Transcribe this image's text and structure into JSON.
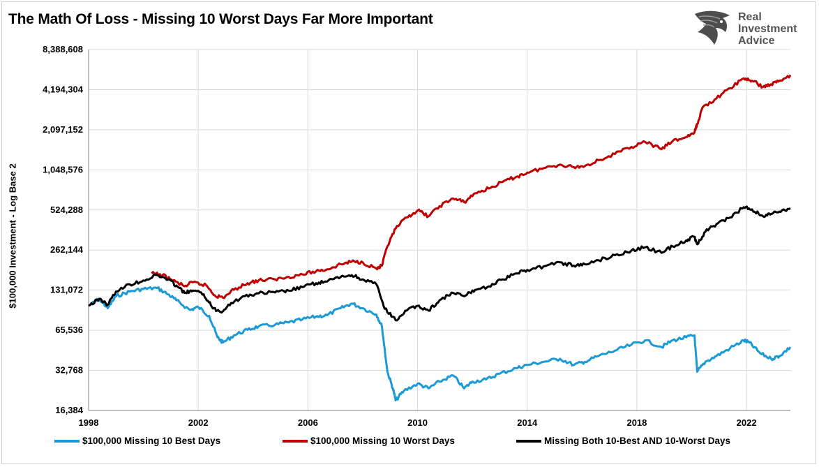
{
  "title": "The Math Of Loss - Missing 10 Worst Days Far More Important",
  "logo": {
    "lines": [
      "Real",
      "Investment",
      "Advice"
    ],
    "icon": "eagle-head-icon",
    "color": "#555555"
  },
  "chart_data": {
    "type": "line",
    "ylabel": "$100,000 Investment - Log Base 2",
    "yscale": "log2",
    "ylim": [
      16384,
      8388608
    ],
    "yticks": [
      16384,
      32768,
      65536,
      131072,
      262144,
      524288,
      1048576,
      2097152,
      4194304,
      8388608
    ],
    "ytick_labels": [
      "16,384",
      "32,768",
      "65,536",
      "131,072",
      "262,144",
      "524,288",
      "1,048,576",
      "2,097,152",
      "4,194,304",
      "8,388,608"
    ],
    "xlim": [
      1998,
      2023.6
    ],
    "xticks": [
      1998,
      2002,
      2006,
      2010,
      2014,
      2018,
      2022
    ],
    "xtick_labels": [
      "1998",
      "2002",
      "2006",
      "2010",
      "2014",
      "2018",
      "2022"
    ],
    "grid": true,
    "legend_position": "bottom",
    "series": [
      {
        "name": "$100,000 Missing 10 Best Days",
        "color": "#1a9ad6",
        "points": [
          [
            1998.0,
            100000
          ],
          [
            1998.4,
            112000
          ],
          [
            1998.7,
            96000
          ],
          [
            1999.0,
            118000
          ],
          [
            1999.5,
            128000
          ],
          [
            2000.0,
            134000
          ],
          [
            2000.5,
            136000
          ],
          [
            2000.9,
            122000
          ],
          [
            2001.2,
            110000
          ],
          [
            2001.7,
            93000
          ],
          [
            2002.0,
            98000
          ],
          [
            2002.4,
            84000
          ],
          [
            2002.7,
            58000
          ],
          [
            2002.9,
            53000
          ],
          [
            2003.3,
            60000
          ],
          [
            2003.8,
            66000
          ],
          [
            2004.2,
            70000
          ],
          [
            2004.8,
            72000
          ],
          [
            2005.3,
            75000
          ],
          [
            2005.8,
            79000
          ],
          [
            2006.3,
            83000
          ],
          [
            2006.7,
            85000
          ],
          [
            2007.2,
            96000
          ],
          [
            2007.6,
            104000
          ],
          [
            2008.0,
            96000
          ],
          [
            2008.5,
            86000
          ],
          [
            2008.7,
            70000
          ],
          [
            2008.9,
            32000
          ],
          [
            2009.1,
            24000
          ],
          [
            2009.2,
            19500
          ],
          [
            2009.5,
            23000
          ],
          [
            2010.0,
            26000
          ],
          [
            2010.4,
            24000
          ],
          [
            2010.8,
            27000
          ],
          [
            2011.3,
            30000
          ],
          [
            2011.7,
            24000
          ],
          [
            2012.0,
            27000
          ],
          [
            2012.5,
            28000
          ],
          [
            2013.0,
            31000
          ],
          [
            2013.6,
            34000
          ],
          [
            2014.0,
            36000
          ],
          [
            2014.6,
            38000
          ],
          [
            2015.2,
            40000
          ],
          [
            2015.7,
            36000
          ],
          [
            2016.1,
            38000
          ],
          [
            2016.6,
            42000
          ],
          [
            2017.2,
            46000
          ],
          [
            2017.8,
            51000
          ],
          [
            2018.3,
            55000
          ],
          [
            2018.9,
            49000
          ],
          [
            2019.3,
            55000
          ],
          [
            2019.8,
            58000
          ],
          [
            2020.1,
            60000
          ],
          [
            2020.2,
            32000
          ],
          [
            2020.5,
            38000
          ],
          [
            2020.9,
            42000
          ],
          [
            2021.4,
            48000
          ],
          [
            2021.9,
            55000
          ],
          [
            2022.1,
            53000
          ],
          [
            2022.5,
            44000
          ],
          [
            2022.9,
            40000
          ],
          [
            2023.2,
            42000
          ],
          [
            2023.6,
            49000
          ]
        ]
      },
      {
        "name": "$100,000 Missing 10 Worst Days",
        "color": "#c00000",
        "points": [
          [
            2000.3,
            175000
          ],
          [
            2000.7,
            170000
          ],
          [
            2001.0,
            158000
          ],
          [
            2001.5,
            140000
          ],
          [
            2001.8,
            150000
          ],
          [
            2002.3,
            142000
          ],
          [
            2002.6,
            120000
          ],
          [
            2002.9,
            115000
          ],
          [
            2003.3,
            132000
          ],
          [
            2003.8,
            148000
          ],
          [
            2004.2,
            155000
          ],
          [
            2004.8,
            158000
          ],
          [
            2005.3,
            165000
          ],
          [
            2005.8,
            172000
          ],
          [
            2006.3,
            182000
          ],
          [
            2006.7,
            188000
          ],
          [
            2007.2,
            205000
          ],
          [
            2007.6,
            215000
          ],
          [
            2008.0,
            212000
          ],
          [
            2008.5,
            190000
          ],
          [
            2008.7,
            200000
          ],
          [
            2008.9,
            280000
          ],
          [
            2009.2,
            380000
          ],
          [
            2009.6,
            460000
          ],
          [
            2010.0,
            520000
          ],
          [
            2010.4,
            470000
          ],
          [
            2010.8,
            560000
          ],
          [
            2011.3,
            640000
          ],
          [
            2011.7,
            600000
          ],
          [
            2012.1,
            700000
          ],
          [
            2012.6,
            760000
          ],
          [
            2013.1,
            850000
          ],
          [
            2013.6,
            930000
          ],
          [
            2014.0,
            1000000
          ],
          [
            2014.6,
            1080000
          ],
          [
            2015.2,
            1150000
          ],
          [
            2015.7,
            1100000
          ],
          [
            2016.1,
            1120000
          ],
          [
            2016.6,
            1240000
          ],
          [
            2017.2,
            1380000
          ],
          [
            2017.8,
            1560000
          ],
          [
            2018.3,
            1700000
          ],
          [
            2018.9,
            1500000
          ],
          [
            2019.3,
            1720000
          ],
          [
            2019.8,
            1850000
          ],
          [
            2020.1,
            2000000
          ],
          [
            2020.2,
            2300000
          ],
          [
            2020.4,
            3100000
          ],
          [
            2020.9,
            3600000
          ],
          [
            2021.4,
            4300000
          ],
          [
            2021.9,
            5100000
          ],
          [
            2022.2,
            4900000
          ],
          [
            2022.6,
            4400000
          ],
          [
            2022.9,
            4600000
          ],
          [
            2023.2,
            4900000
          ],
          [
            2023.6,
            5400000
          ]
        ]
      },
      {
        "name": "Missing Both 10-Best AND 10-Worst Days",
        "color": "#000000",
        "points": [
          [
            1998.0,
            100000
          ],
          [
            1998.4,
            113000
          ],
          [
            1998.7,
            102000
          ],
          [
            1999.0,
            128000
          ],
          [
            1999.5,
            145000
          ],
          [
            2000.0,
            155000
          ],
          [
            2000.5,
            170000
          ],
          [
            2000.9,
            158000
          ],
          [
            2001.2,
            142000
          ],
          [
            2001.5,
            125000
          ],
          [
            2001.8,
            130000
          ],
          [
            2002.2,
            122000
          ],
          [
            2002.5,
            98000
          ],
          [
            2002.8,
            90000
          ],
          [
            2003.2,
            105000
          ],
          [
            2003.7,
            118000
          ],
          [
            2004.2,
            124000
          ],
          [
            2004.8,
            126000
          ],
          [
            2005.3,
            130000
          ],
          [
            2005.8,
            138000
          ],
          [
            2006.3,
            148000
          ],
          [
            2006.7,
            152000
          ],
          [
            2007.2,
            165000
          ],
          [
            2007.6,
            170000
          ],
          [
            2008.0,
            158000
          ],
          [
            2008.5,
            145000
          ],
          [
            2008.8,
            95000
          ],
          [
            2009.2,
            78000
          ],
          [
            2009.6,
            92000
          ],
          [
            2010.0,
            100000
          ],
          [
            2010.4,
            92000
          ],
          [
            2010.8,
            110000
          ],
          [
            2011.3,
            125000
          ],
          [
            2011.7,
            118000
          ],
          [
            2012.1,
            132000
          ],
          [
            2012.6,
            140000
          ],
          [
            2013.1,
            158000
          ],
          [
            2013.6,
            175000
          ],
          [
            2014.0,
            186000
          ],
          [
            2014.6,
            198000
          ],
          [
            2015.2,
            212000
          ],
          [
            2015.7,
            200000
          ],
          [
            2016.1,
            205000
          ],
          [
            2016.6,
            220000
          ],
          [
            2017.2,
            240000
          ],
          [
            2017.8,
            260000
          ],
          [
            2018.3,
            275000
          ],
          [
            2018.9,
            250000
          ],
          [
            2019.3,
            280000
          ],
          [
            2019.8,
            310000
          ],
          [
            2020.1,
            330000
          ],
          [
            2020.2,
            290000
          ],
          [
            2020.5,
            360000
          ],
          [
            2020.9,
            410000
          ],
          [
            2021.4,
            460000
          ],
          [
            2021.9,
            550000
          ],
          [
            2022.2,
            530000
          ],
          [
            2022.6,
            470000
          ],
          [
            2022.9,
            490000
          ],
          [
            2023.2,
            510000
          ],
          [
            2023.6,
            540000
          ]
        ]
      }
    ]
  }
}
